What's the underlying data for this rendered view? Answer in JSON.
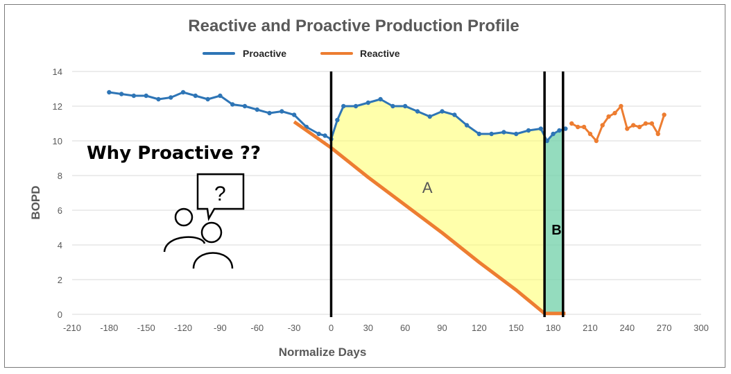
{
  "chart_data": {
    "type": "line",
    "title": "Reactive and Proactive Production Profile",
    "xlabel": "Normalize Days",
    "ylabel": "BOPD",
    "xlim": [
      -210,
      300
    ],
    "ylim": [
      0,
      14
    ],
    "x_ticks": [
      -210,
      -180,
      -150,
      -120,
      -90,
      -60,
      -30,
      0,
      30,
      60,
      90,
      120,
      150,
      180,
      210,
      240,
      270,
      300
    ],
    "y_ticks": [
      0,
      2,
      4,
      6,
      8,
      10,
      12,
      14
    ],
    "grid": "horizontal",
    "legend_position": "top",
    "series": [
      {
        "name": "Proactive",
        "color": "#2e75b6",
        "x": [
          -180,
          -170,
          -160,
          -150,
          -140,
          -130,
          -120,
          -110,
          -100,
          -90,
          -80,
          -70,
          -60,
          -50,
          -40,
          -30,
          -20,
          -10,
          -5,
          0,
          5,
          10,
          20,
          30,
          40,
          50,
          60,
          70,
          80,
          90,
          100,
          110,
          120,
          130,
          140,
          150,
          160,
          170,
          175,
          180,
          185,
          190
        ],
        "values": [
          12.8,
          12.7,
          12.6,
          12.6,
          12.4,
          12.5,
          12.8,
          12.6,
          12.4,
          12.6,
          12.1,
          12.0,
          11.8,
          11.6,
          11.7,
          11.5,
          10.8,
          10.4,
          10.3,
          10.1,
          11.2,
          12.0,
          12.0,
          12.2,
          12.4,
          12.0,
          12.0,
          11.7,
          11.4,
          11.7,
          11.5,
          10.9,
          10.4,
          10.4,
          10.5,
          10.4,
          10.6,
          10.7,
          10.0,
          10.4,
          10.6,
          10.7
        ]
      },
      {
        "name": "Reactive",
        "color": "#ed7d31",
        "x": [
          -30,
          -20,
          -10,
          0,
          30,
          60,
          90,
          120,
          150,
          173,
          180,
          190,
          195,
          200,
          205,
          210,
          215,
          220,
          225,
          230,
          235,
          240,
          245,
          250,
          255,
          260,
          265,
          270
        ],
        "values": [
          11.1,
          10.6,
          10.1,
          9.6,
          7.9,
          6.3,
          4.7,
          3.0,
          1.4,
          0.05,
          0.05,
          0.05,
          11.0,
          10.8,
          10.8,
          10.4,
          10.0,
          10.9,
          11.4,
          11.6,
          12.0,
          10.7,
          10.9,
          10.8,
          11.0,
          11.0,
          10.4,
          11.5
        ]
      }
    ],
    "vertical_lines_x": [
      0,
      173,
      188
    ],
    "regions": [
      {
        "label": "A",
        "color": "#ffff66",
        "x_range": [
          0,
          173
        ]
      },
      {
        "label": "B",
        "color": "#70d0a8",
        "x_range": [
          173,
          188
        ]
      }
    ]
  },
  "callout": {
    "text": "Why Proactive ??",
    "icon": "people-question-icon",
    "icon_glyph": "?"
  }
}
